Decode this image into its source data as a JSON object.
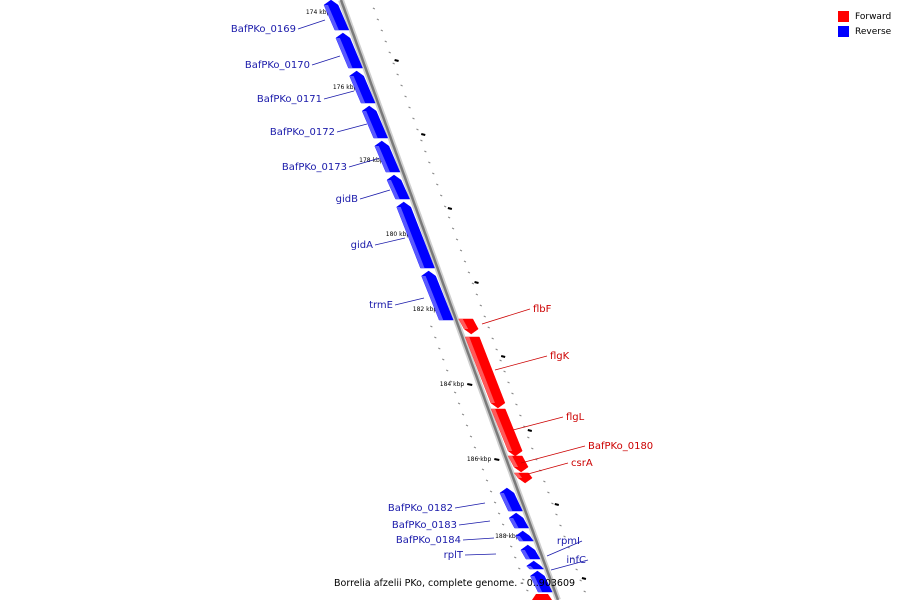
{
  "legend": {
    "forward_label": "Forward",
    "reverse_label": "Reverse",
    "forward_color": "#ff0000",
    "reverse_color": "#0000ff"
  },
  "caption": "Borrelia afzelii PKo, complete genome. - 0..903609",
  "colors": {
    "forward": "#ff0000",
    "reverse": "#0000ff",
    "forward_label": "#cc0000",
    "reverse_label": "#1a1aaa",
    "backbone": "#7a7a7a"
  },
  "ticks": [
    "174 kbp",
    "176 kbp",
    "178 kbp",
    "180 kbp",
    "182 kbp",
    "184 kbp",
    "186 kbp",
    "188 kbp"
  ],
  "genes": [
    {
      "label": "BafPKo_0169",
      "strand": "reverse"
    },
    {
      "label": "BafPKo_0170",
      "strand": "reverse"
    },
    {
      "label": "BafPKo_0171",
      "strand": "reverse"
    },
    {
      "label": "BafPKo_0172",
      "strand": "reverse"
    },
    {
      "label": "BafPKo_0173",
      "strand": "reverse"
    },
    {
      "label": "gidB",
      "strand": "reverse"
    },
    {
      "label": "gidA",
      "strand": "reverse"
    },
    {
      "label": "trmE",
      "strand": "reverse"
    },
    {
      "label": "flbF",
      "strand": "forward"
    },
    {
      "label": "flgK",
      "strand": "forward"
    },
    {
      "label": "flgL",
      "strand": "forward"
    },
    {
      "label": "BafPKo_0180",
      "strand": "forward"
    },
    {
      "label": "csrA",
      "strand": "forward"
    },
    {
      "label": "BafPKo_0182",
      "strand": "reverse"
    },
    {
      "label": "BafPKo_0183",
      "strand": "reverse"
    },
    {
      "label": "BafPKo_0184",
      "strand": "reverse"
    },
    {
      "label": "rplT",
      "strand": "reverse"
    },
    {
      "label": "rpmI",
      "strand": "reverse"
    },
    {
      "label": "infC",
      "strand": "reverse"
    }
  ]
}
